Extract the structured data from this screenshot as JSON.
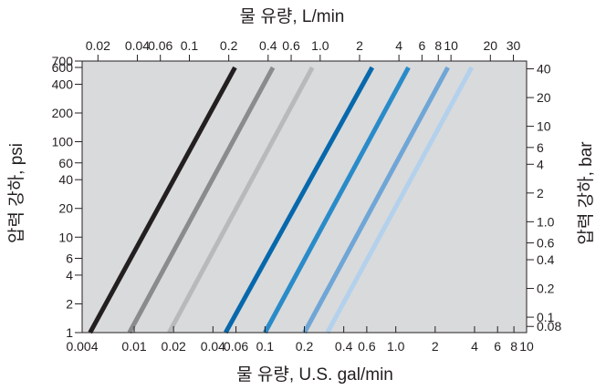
{
  "chart_data": {
    "type": "line",
    "x_bottom": {
      "label": "물 유량, U.S. gal/min",
      "scale": "log",
      "range": [
        0.004,
        10
      ],
      "ticks": [
        "0.004",
        "0.01",
        "0.02",
        "0.04",
        "0.06",
        "0.1",
        "0.2",
        "0.4",
        "0.6",
        "1.0",
        "2",
        "4",
        "6",
        "8",
        "10"
      ],
      "tick_values": [
        0.004,
        0.01,
        0.02,
        0.04,
        0.06,
        0.1,
        0.2,
        0.4,
        0.6,
        1.0,
        2,
        4,
        6,
        8,
        10
      ]
    },
    "x_top": {
      "label": "물 유량, L/min",
      "scale": "log",
      "ticks": [
        "0.02",
        "0.04",
        "0.06",
        "0.1",
        "0.2",
        "0.4",
        "0.6",
        "1.0",
        "2",
        "4",
        "6",
        "8",
        "10",
        "20",
        "30"
      ],
      "tick_values": [
        0.02,
        0.04,
        0.06,
        0.1,
        0.2,
        0.4,
        0.6,
        1.0,
        2,
        4,
        6,
        8,
        10,
        20,
        30
      ]
    },
    "y_left": {
      "label": "압력 강하, psi",
      "scale": "log",
      "range": [
        1,
        700
      ],
      "ticks": [
        "1",
        "2",
        "4",
        "6",
        "10",
        "20",
        "40",
        "60",
        "100",
        "200",
        "400",
        "600",
        "700"
      ],
      "tick_values": [
        1,
        2,
        4,
        6,
        10,
        20,
        40,
        60,
        100,
        200,
        400,
        600,
        700
      ]
    },
    "y_right": {
      "label": "압력 강하, bar",
      "scale": "log",
      "ticks": [
        "0.08",
        "0.1",
        "0.2",
        "0.4",
        "0.6",
        "1.0",
        "2",
        "4",
        "6",
        "10",
        "20",
        "40"
      ],
      "tick_values": [
        0.08,
        0.1,
        0.2,
        0.4,
        0.6,
        1.0,
        2,
        4,
        6,
        10,
        20,
        40
      ]
    },
    "grid": false,
    "background_color": "#d9dadb",
    "series": [
      {
        "color": "#231f20",
        "points": [
          [
            0.0046,
            1
          ],
          [
            0.059,
            600
          ]
        ]
      },
      {
        "color": "#8a8b8d",
        "points": [
          [
            0.0092,
            1
          ],
          [
            0.115,
            600
          ]
        ]
      },
      {
        "color": "#b8b9bb",
        "points": [
          [
            0.0185,
            1
          ],
          [
            0.23,
            600
          ]
        ]
      },
      {
        "color": "#0768ac",
        "points": [
          [
            0.05,
            1
          ],
          [
            0.66,
            600
          ]
        ]
      },
      {
        "color": "#2a8bc9",
        "points": [
          [
            0.1,
            1
          ],
          [
            1.25,
            600
          ]
        ]
      },
      {
        "color": "#6fa6d6",
        "points": [
          [
            0.2,
            1
          ],
          [
            2.5,
            600
          ]
        ]
      },
      {
        "color": "#b3d1ec",
        "points": [
          [
            0.3,
            1
          ],
          [
            3.8,
            600
          ]
        ]
      }
    ]
  }
}
